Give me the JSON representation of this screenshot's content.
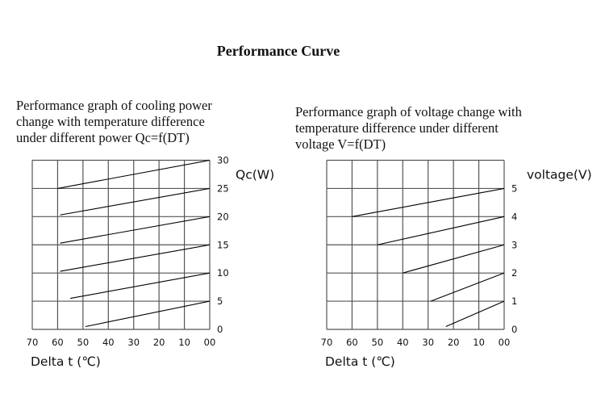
{
  "title": "Performance Curve",
  "chart_data": [
    {
      "type": "line",
      "description": "Performance graph of cooling power\nchange with temperature difference\nunder different power Qc=f(DT)",
      "xlabel": "Delta t (℃)",
      "ylabel": "Qc(W)",
      "x_ticks": [
        "70",
        "60",
        "50",
        "40",
        "30",
        "20",
        "10",
        "00"
      ],
      "y_ticks": [
        "0",
        "5",
        "10",
        "15",
        "20",
        "25",
        "30"
      ],
      "xlim": [
        70,
        0
      ],
      "ylim": [
        0,
        30
      ],
      "grid": true,
      "series": [
        {
          "name": "30",
          "x": [
            60,
            0
          ],
          "y": [
            25,
            30
          ]
        },
        {
          "name": "25",
          "x": [
            59,
            0
          ],
          "y": [
            20.3,
            25
          ]
        },
        {
          "name": "20",
          "x": [
            59,
            0
          ],
          "y": [
            15.3,
            20
          ]
        },
        {
          "name": "15",
          "x": [
            59,
            0
          ],
          "y": [
            10.3,
            15
          ]
        },
        {
          "name": "10",
          "x": [
            55,
            0
          ],
          "y": [
            5.5,
            10
          ]
        },
        {
          "name": "5",
          "x": [
            49,
            0
          ],
          "y": [
            0.5,
            5
          ]
        }
      ]
    },
    {
      "type": "line",
      "description": "Performance graph of voltage change with\ntemperature difference under different\nvoltage V=f(DT)",
      "xlabel": "Delta t (℃)",
      "ylabel": "voltage(V)",
      "x_ticks": [
        "70",
        "60",
        "50",
        "40",
        "30",
        "20",
        "10",
        "00"
      ],
      "y_ticks": [
        "0",
        "1",
        "2",
        "3",
        "4",
        "5"
      ],
      "xlim": [
        70,
        0
      ],
      "ylim": [
        0,
        6
      ],
      "grid": true,
      "series": [
        {
          "name": "5",
          "x": [
            60,
            0
          ],
          "y": [
            4,
            5
          ]
        },
        {
          "name": "4",
          "x": [
            50,
            0
          ],
          "y": [
            3,
            4
          ]
        },
        {
          "name": "3",
          "x": [
            40,
            0
          ],
          "y": [
            2,
            3
          ]
        },
        {
          "name": "2",
          "x": [
            29,
            0
          ],
          "y": [
            1,
            2
          ]
        },
        {
          "name": "1",
          "x": [
            23,
            0
          ],
          "y": [
            0.1,
            1
          ]
        }
      ]
    }
  ]
}
